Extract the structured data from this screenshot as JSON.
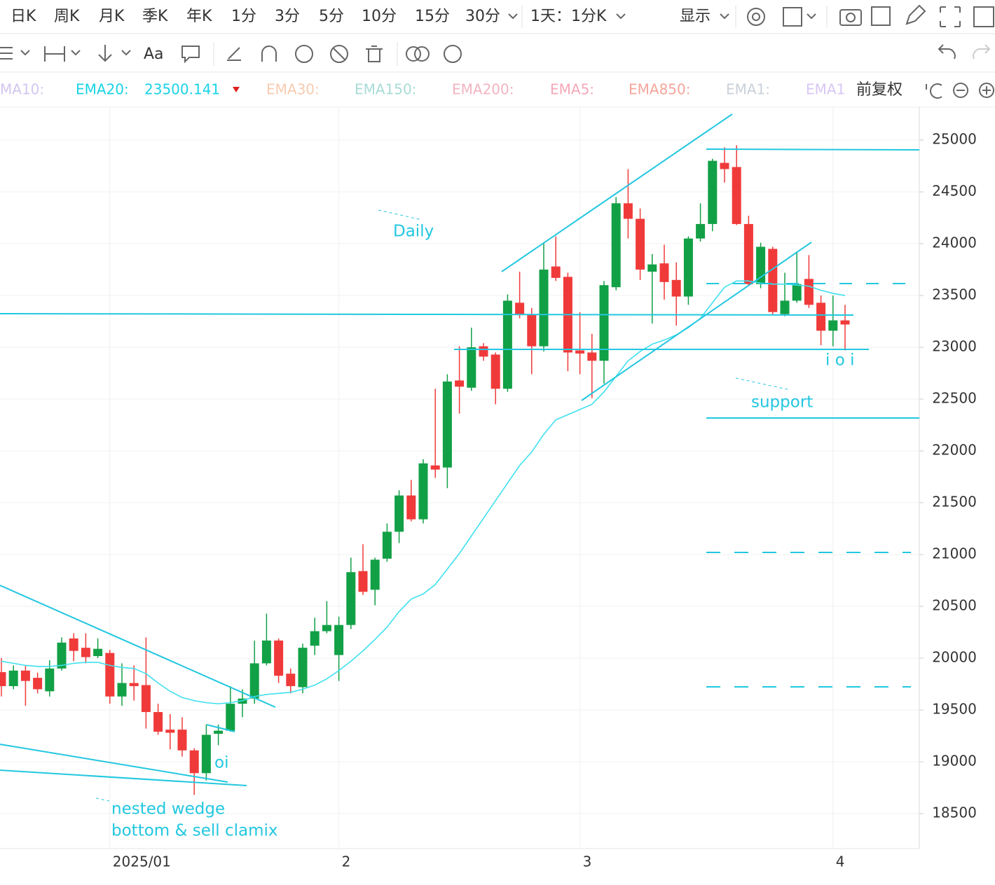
{
  "toolbar": {
    "periods": [
      "日K",
      "周K",
      "月K",
      "季K",
      "年K",
      "1分",
      "3分",
      "5分",
      "10分",
      "15分",
      "30分"
    ],
    "interval": "1天：1分K",
    "display": "显示",
    "font_tool": "Aa"
  },
  "indicator_bar": {
    "items": [
      {
        "text": "MA10:",
        "color": "#d3c6ef"
      },
      {
        "text": "EMA20:",
        "color": "#19d3e6"
      },
      {
        "text": "EMA30:",
        "color": "#f7cbb0"
      },
      {
        "text": "EMA150:",
        "color": "#a8dcd6"
      },
      {
        "text": "EMA200:",
        "color": "#f1b4c1"
      },
      {
        "text": "EMA5:",
        "color": "#f5a8b8"
      },
      {
        "text": "EMA850:",
        "color": "#f4a59b"
      },
      {
        "text": "EMA1:",
        "color": "#c9d1d9"
      },
      {
        "text": "EMA1",
        "color": "#d8c7f4"
      }
    ],
    "value": "23500.141",
    "adjust": "前复权"
  },
  "chart_data": {
    "type": "candlestick",
    "categories": [
      null,
      null,
      null,
      null,
      null,
      null,
      null,
      null,
      null,
      "2025/01",
      null,
      null,
      null,
      null,
      null,
      null,
      null,
      null,
      null,
      null,
      null,
      null,
      null,
      null,
      null,
      null,
      null,
      null,
      "2",
      null,
      null,
      null,
      null,
      null,
      null,
      null,
      null,
      null,
      null,
      null,
      null,
      null,
      null,
      null,
      null,
      null,
      null,
      null,
      "3",
      null,
      null,
      null,
      null,
      null,
      null,
      null,
      null,
      null,
      null,
      null,
      null,
      null,
      null,
      null,
      null,
      null,
      null,
      null,
      null,
      "4",
      null
    ],
    "open": [
      19865,
      19730,
      19880,
      19810,
      19680,
      19900,
      20190,
      20100,
      20020,
      20050,
      19630,
      19760,
      19740,
      19480,
      19310,
      19310,
      19110,
      18890,
      19270,
      19300,
      19560,
      19610,
      19950,
      20170,
      19850,
      19720,
      20120,
      20260,
      20030,
      20320,
      20840,
      20660,
      20960,
      21220,
      21570,
      21340,
      21860,
      21840,
      22680,
      22610,
      23010,
      22930,
      22600,
      23430,
      23320,
      23010,
      23780,
      23680,
      22970,
      22950,
      22870,
      23580,
      24390,
      24240,
      23730,
      23810,
      23650,
      23490,
      24050,
      24190,
      24780,
      24740,
      24190,
      23610,
      23950,
      23320,
      23450,
      23660,
      23430,
      23160,
      23260
    ],
    "high": [
      20000,
      19930,
      19930,
      19860,
      19980,
      20200,
      20240,
      20240,
      20190,
      20080,
      19950,
      19930,
      20200,
      19560,
      19460,
      19430,
      19130,
      19360,
      19360,
      19730,
      19700,
      20170,
      20430,
      20190,
      19900,
      20140,
      20390,
      20550,
      20400,
      20970,
      21100,
      20970,
      21300,
      21620,
      21720,
      21920,
      22600,
      22740,
      23010,
      23190,
      23040,
      22950,
      23510,
      23730,
      23380,
      24010,
      24070,
      23720,
      23340,
      23130,
      23640,
      24450,
      24720,
      24340,
      23900,
      23990,
      23820,
      24070,
      24390,
      24820,
      24930,
      24950,
      24270,
      24010,
      23970,
      23720,
      23920,
      23890,
      23500,
      23500,
      23410
    ],
    "low": [
      19630,
      19700,
      19540,
      19660,
      19630,
      19880,
      19970,
      19950,
      20000,
      19560,
      19540,
      19590,
      19320,
      19260,
      19120,
      19050,
      18680,
      18820,
      19160,
      19290,
      19430,
      19560,
      19930,
      19760,
      19660,
      19660,
      20030,
      20240,
      19780,
      20280,
      20610,
      20510,
      20930,
      21110,
      21320,
      21300,
      21740,
      21640,
      22360,
      22580,
      22870,
      22450,
      22570,
      23280,
      22740,
      22960,
      23640,
      22770,
      22740,
      22510,
      22650,
      23550,
      24050,
      23650,
      23230,
      23460,
      23210,
      23410,
      24020,
      24120,
      24590,
      24180,
      23590,
      23570,
      23310,
      23300,
      23430,
      23380,
      23020,
      23010,
      22970
    ],
    "close": [
      19730,
      19880,
      19780,
      19700,
      19900,
      20150,
      20070,
      20010,
      20090,
      19630,
      19760,
      19730,
      19480,
      19290,
      19280,
      19110,
      18890,
      19260,
      19300,
      19560,
      19610,
      19950,
      20170,
      19830,
      19730,
      20100,
      20260,
      20320,
      20320,
      20830,
      20640,
      20950,
      21220,
      21570,
      21340,
      21880,
      21820,
      22670,
      22620,
      23000,
      22910,
      22600,
      23450,
      23320,
      23010,
      23750,
      23670,
      22950,
      22940,
      22870,
      23600,
      24390,
      24240,
      23750,
      23800,
      23630,
      23490,
      24050,
      24190,
      24800,
      24720,
      24190,
      23610,
      23970,
      23340,
      23450,
      23610,
      23410,
      23160,
      23260,
      23220
    ],
    "up_color": "#12a046",
    "down_color": "#f03a3a",
    "ema": {
      "color": "#3fe0ee",
      "values": [
        19970,
        19950,
        19930,
        19920,
        19920,
        19930,
        19950,
        19960,
        19960,
        19930,
        19910,
        19900,
        19850,
        19760,
        19680,
        19620,
        19590,
        19570,
        19560,
        19570,
        19590,
        19630,
        19650,
        19660,
        19670,
        19700,
        19740,
        19800,
        19880,
        19970,
        20070,
        20180,
        20300,
        20450,
        20570,
        20620,
        20710,
        20860,
        21010,
        21180,
        21350,
        21520,
        21690,
        21860,
        21990,
        22160,
        22300,
        22350,
        22400,
        22450,
        22570,
        22720,
        22870,
        22960,
        23030,
        23070,
        23120,
        23190,
        23280,
        23430,
        23580,
        23640,
        23640,
        23620,
        23610,
        23610,
        23600,
        23590,
        23550,
        23520,
        23500
      ]
    },
    "ylim": [
      18162,
      25318
    ],
    "yticks": [
      25000,
      24500,
      24000,
      23500,
      23000,
      22500,
      22000,
      21500,
      21000,
      20500,
      20000,
      19500,
      19000,
      18500
    ],
    "grid": true,
    "annotations": [
      "Daily",
      "support",
      "i o i",
      "oi",
      "nested wedge",
      "bottom & sell clamix"
    ]
  }
}
